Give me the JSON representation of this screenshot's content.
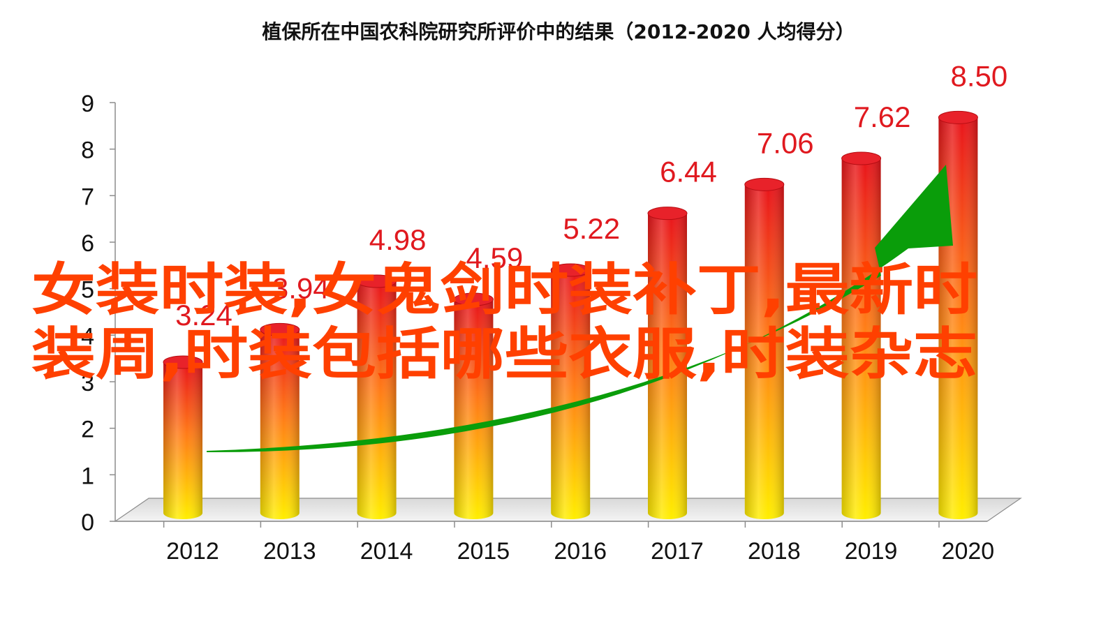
{
  "chart_data": {
    "type": "bar",
    "title": "植保所在中国农科院研究所评价中的结果（2012-2020  人均得分）",
    "categories": [
      "2012",
      "2013",
      "2014",
      "2015",
      "2016",
      "2017",
      "2018",
      "2019",
      "2020"
    ],
    "values": [
      3.24,
      3.94,
      4.98,
      4.59,
      5.22,
      6.44,
      7.06,
      7.62,
      8.5
    ],
    "value_labels": [
      "3.24",
      "3.94",
      "4.98",
      "4.59",
      "5.22",
      "6.44",
      "7.06",
      "7.62",
      "8.50"
    ],
    "ylim": [
      0,
      9
    ],
    "y_ticks": [
      "0",
      "1",
      "2",
      "3",
      "4",
      "5",
      "6",
      "7",
      "8",
      "9"
    ],
    "xlabel": "",
    "ylabel": "",
    "grid": false,
    "legend": "none",
    "style": "3d-cylinder",
    "trend_arrow": "green upward arrow",
    "colors": {
      "bar_top": "#e8141c",
      "bar_mid": "#ff8c1a",
      "bar_bottom": "#ffee00",
      "data_label": "#e0191f",
      "trend_arrow": "#0a9d0a",
      "overlay_text": "#ff4000"
    }
  },
  "overlay": {
    "line1": "女装时装,女鬼剑时装补丁,最新时",
    "line2": "装周,时装包括哪些衣服,时装杂志"
  }
}
